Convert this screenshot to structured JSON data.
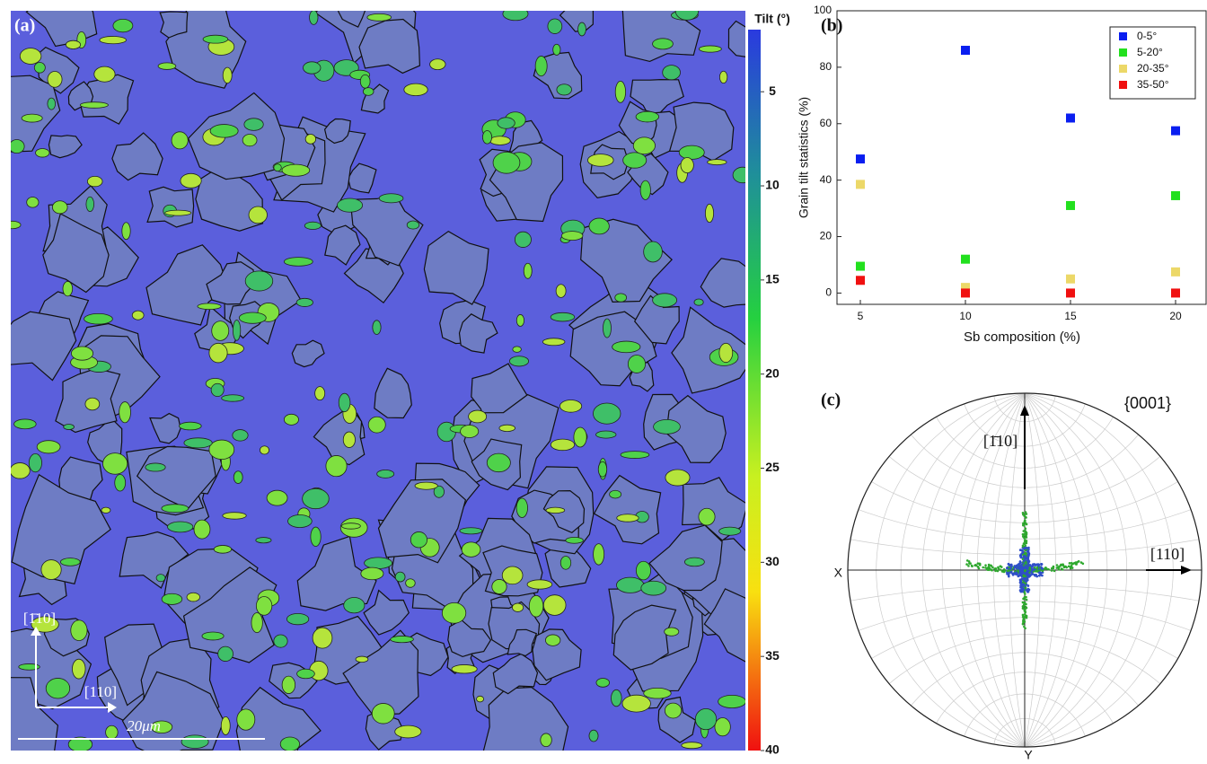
{
  "chart_data": [
    {
      "type": "map",
      "panel_label": "(a)",
      "colorbar_title": "Tilt (°)",
      "clim": [
        1.7,
        40
      ],
      "colorbar_ticks": [
        5,
        10,
        15,
        20,
        25,
        30,
        35,
        40
      ],
      "scale_bar_label": "20μm",
      "directions": [
        "[1̄10]",
        "[110]"
      ]
    },
    {
      "type": "scatter",
      "panel_label": "(b)",
      "x_label": "Sb composition (%)",
      "y_label": "Grain tilt statistics (%)",
      "categories": [
        "5",
        "10",
        "15",
        "20"
      ],
      "ylim": [
        -4,
        100
      ],
      "yticks": [
        0,
        20,
        40,
        60,
        80,
        100
      ],
      "legend": "upper right",
      "series": [
        {
          "name": "0-5°",
          "color": "#0a1ef0",
          "values": [
            47.5,
            86,
            62,
            57.5
          ]
        },
        {
          "name": "5-20°",
          "color": "#22e01e",
          "values": [
            9.5,
            12,
            31,
            34.5
          ]
        },
        {
          "name": "20-35°",
          "color": "#ecd868",
          "values": [
            38.5,
            2,
            5,
            7.5
          ]
        },
        {
          "name": "35-50°",
          "color": "#f01010",
          "values": [
            4.5,
            0,
            0,
            0
          ]
        }
      ]
    },
    {
      "type": "pole-figure",
      "panel_label": "(c)",
      "title": "{0001}",
      "axis_labels": [
        "X",
        "Y"
      ],
      "directions": [
        "[1̄10]",
        "[110]"
      ]
    }
  ]
}
